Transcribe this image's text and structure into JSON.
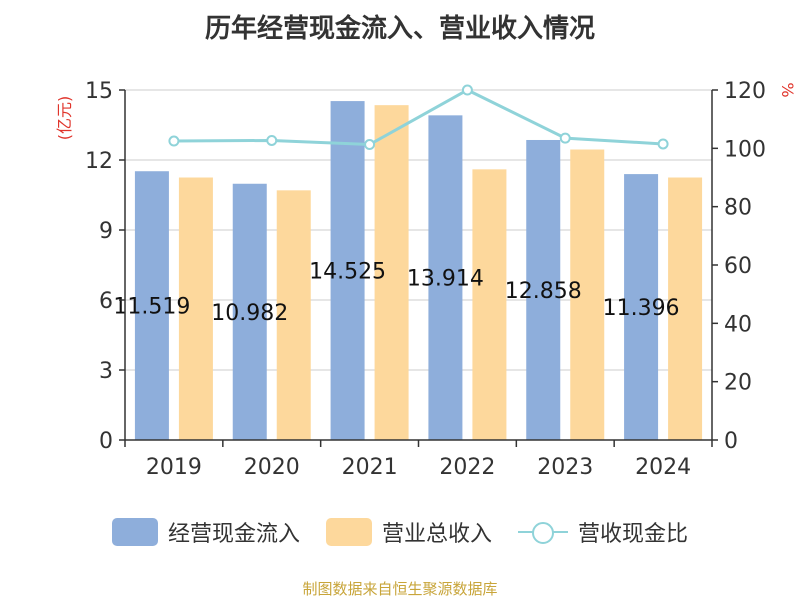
{
  "title": "历年经营现金流入、营业收入情况",
  "source": "制图数据来自恒生聚源数据库",
  "colors": {
    "inflow": "#8eaedb",
    "revenue": "#fdd89c",
    "ratio": "#8fd3d9",
    "unit": "#e0342b"
  },
  "chart_data": {
    "type": "bar",
    "categories": [
      "2019",
      "2020",
      "2021",
      "2022",
      "2023",
      "2024"
    ],
    "series": [
      {
        "name": "经营现金流入",
        "type": "bar",
        "axis": "left",
        "values": [
          11.519,
          10.982,
          14.525,
          13.914,
          12.858,
          11.396
        ],
        "labels": [
          "11.519",
          "10.982",
          "14.525",
          "13.914",
          "12.858",
          "11.396"
        ]
      },
      {
        "name": "营业总收入",
        "type": "bar",
        "axis": "left",
        "values": [
          11.25,
          10.7,
          14.35,
          11.6,
          12.45,
          11.25
        ]
      },
      {
        "name": "营收现金比",
        "type": "line",
        "axis": "right",
        "values": [
          102.5,
          102.7,
          101.3,
          120,
          103.5,
          101.5
        ]
      }
    ],
    "y_left": {
      "label": "(亿元)",
      "ylim": [
        0,
        15
      ],
      "ticks": [
        "0",
        "3",
        "6",
        "9",
        "12",
        "15"
      ]
    },
    "y_right": {
      "label": "%",
      "ylim": [
        0,
        120
      ],
      "ticks": [
        "0",
        "20",
        "40",
        "60",
        "80",
        "100",
        "120"
      ]
    },
    "legend_position": "bottom",
    "grid": true
  }
}
